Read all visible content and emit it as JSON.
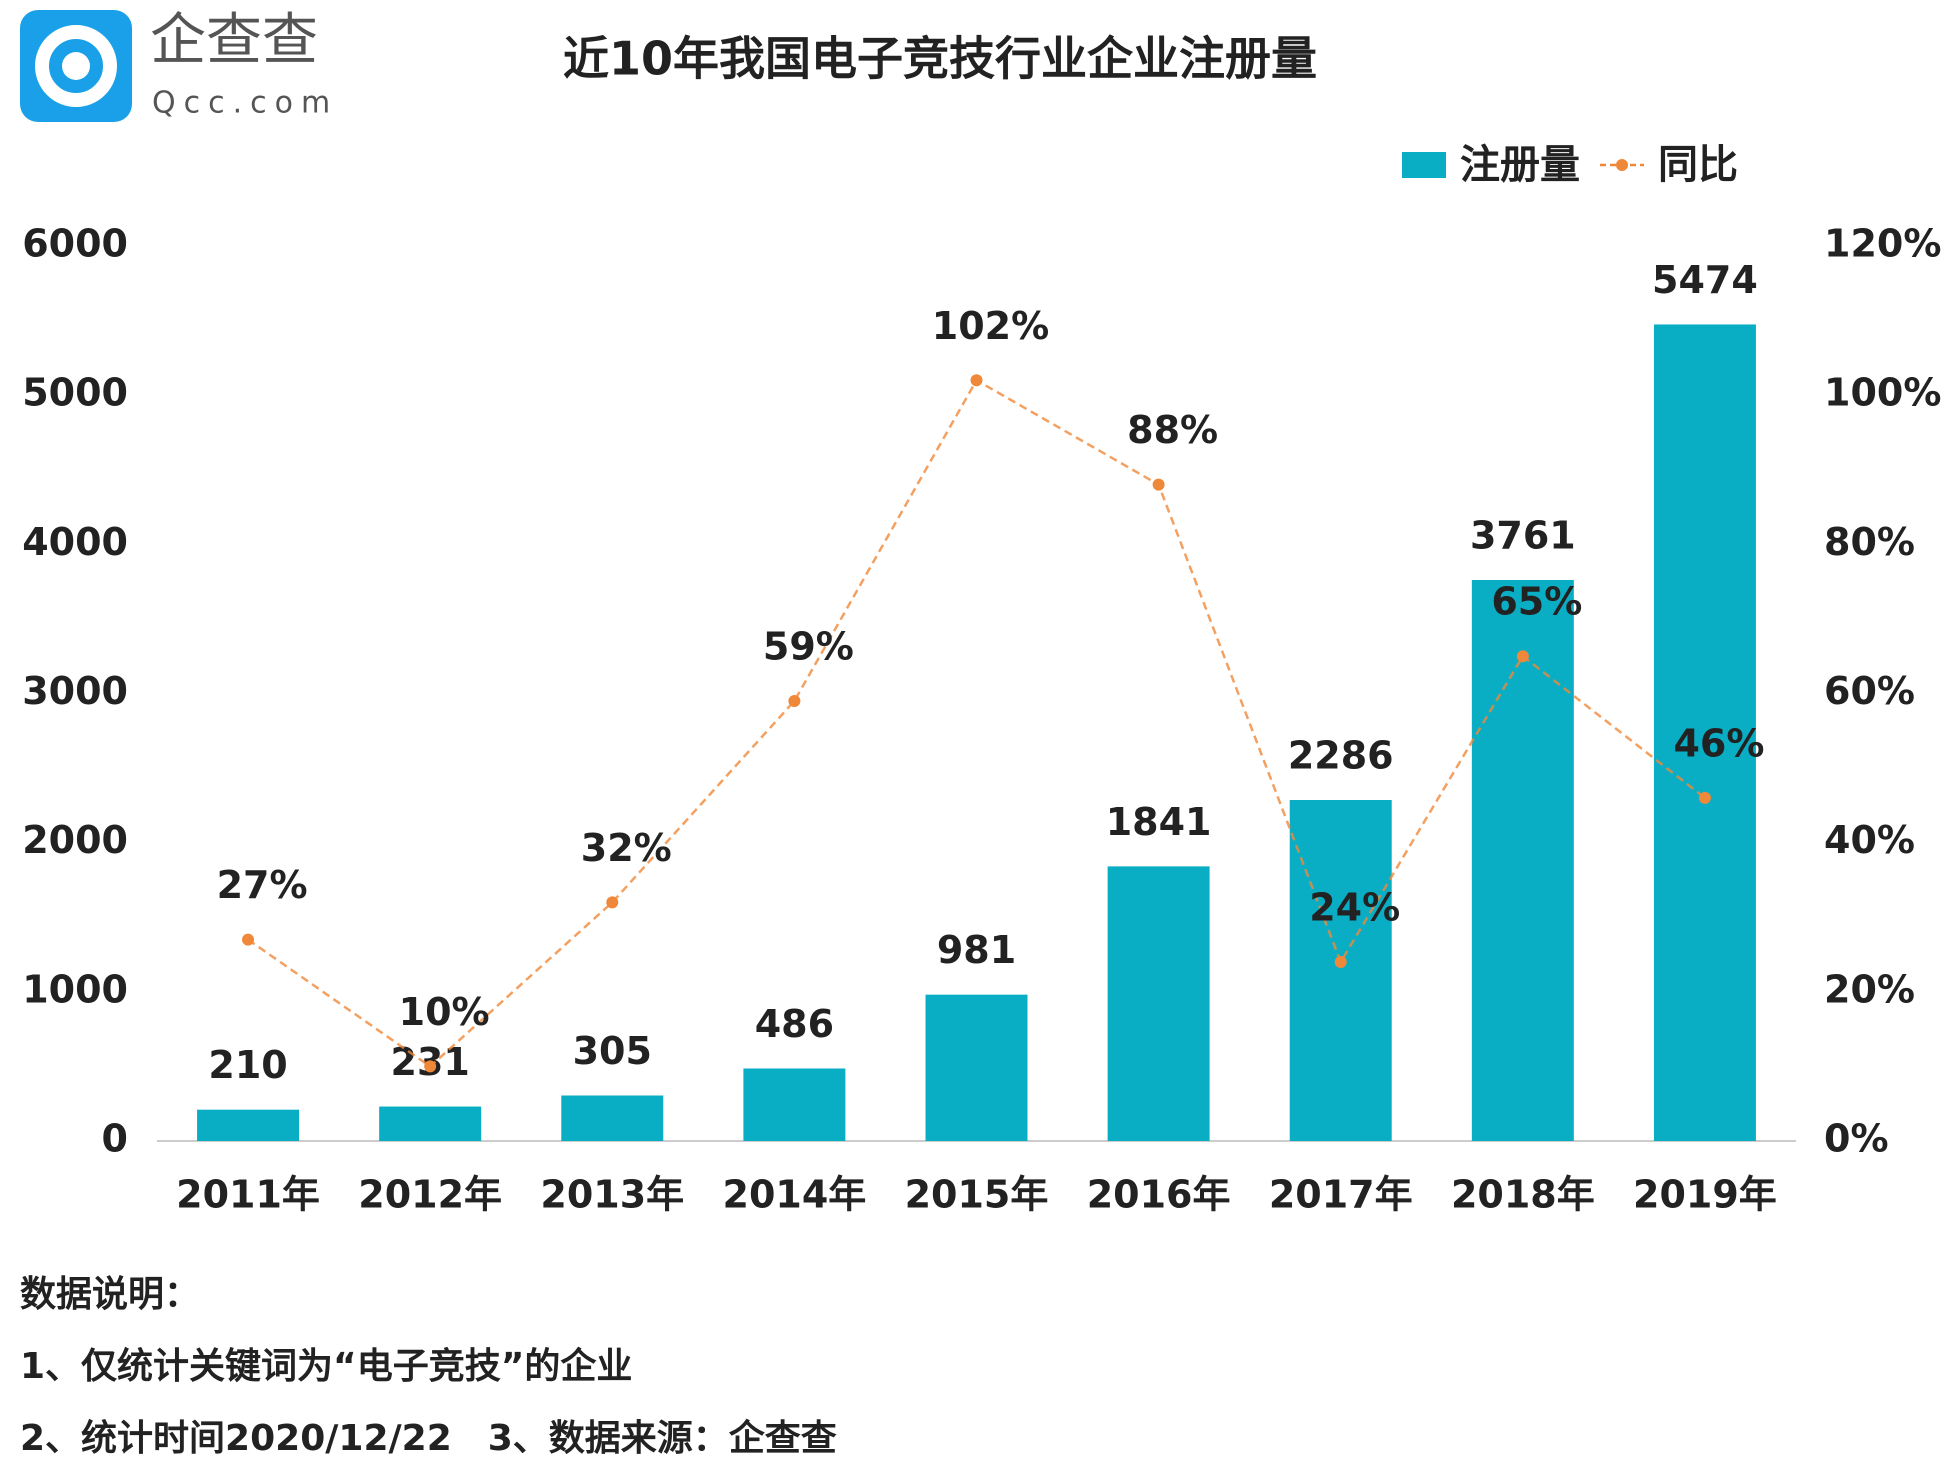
{
  "logo": {
    "name": "企查查",
    "url": "Qcc.com"
  },
  "chart_data": {
    "type": "bar-line",
    "title": "近10年我国电子竞技行业企业注册量",
    "categories": [
      "2011年",
      "2012年",
      "2013年",
      "2014年",
      "2015年",
      "2016年",
      "2017年",
      "2018年",
      "2019年"
    ],
    "series": [
      {
        "name": "注册量",
        "type": "bar",
        "color": "#0aaec4",
        "values": [
          210,
          231,
          305,
          486,
          981,
          1841,
          2286,
          3761,
          5474
        ]
      },
      {
        "name": "同比",
        "type": "line",
        "axis": "y2",
        "color": "#f0883a",
        "values": [
          27,
          10,
          32,
          59,
          102,
          88,
          24,
          65,
          46
        ],
        "value_labels": [
          "27%",
          "10%",
          "32%",
          "59%",
          "102%",
          "88%",
          "24%",
          "65%",
          "46%"
        ]
      }
    ],
    "ylim": [
      0,
      6000
    ],
    "yticks": [
      0,
      1000,
      2000,
      3000,
      4000,
      5000,
      6000
    ],
    "y2lim": [
      0,
      120
    ],
    "y2ticks": [
      {
        "value": 0,
        "label": "0%"
      },
      {
        "value": 20,
        "label": "20%"
      },
      {
        "value": 40,
        "label": "40%"
      },
      {
        "value": 60,
        "label": "60%"
      },
      {
        "value": 80,
        "label": "80%"
      },
      {
        "value": 100,
        "label": "100%"
      },
      {
        "value": 120,
        "label": "120%"
      }
    ],
    "legend": "top-right",
    "grid": false
  },
  "notes": {
    "heading": "数据说明：",
    "lines": [
      "1、仅统计关键词为“电子竞技”的企业",
      "2、统计时间2020/12/22　3、数据来源：企查查"
    ]
  }
}
